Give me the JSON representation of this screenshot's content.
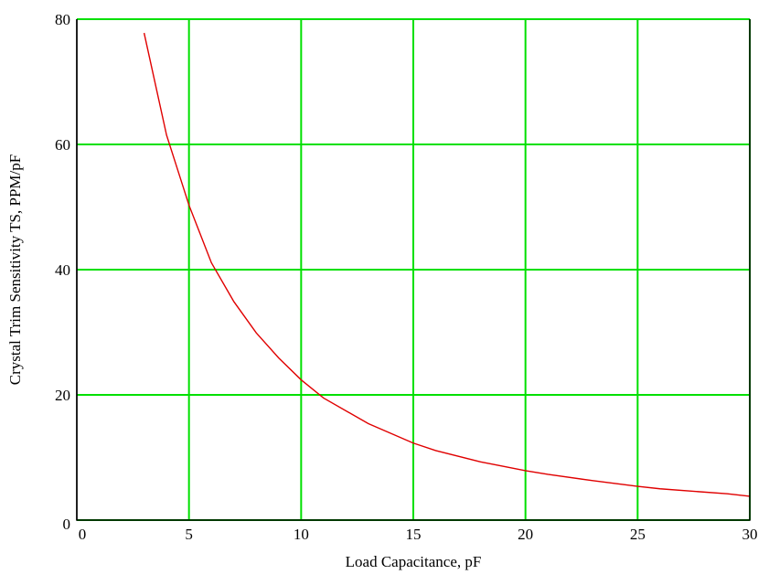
{
  "chart_data": {
    "type": "line",
    "title": "",
    "xlabel": "Load Capacitance, pF",
    "ylabel": "Crystal Trim Sensitivity TS, PPM/pF",
    "xlim": [
      0,
      30
    ],
    "ylim": [
      0,
      80
    ],
    "xticks": [
      0,
      5,
      10,
      15,
      20,
      25,
      30
    ],
    "yticks": [
      0,
      20,
      40,
      60,
      80
    ],
    "grid": true,
    "colors": {
      "grid": "#00e000",
      "line": "#e00000",
      "frame": "#000000"
    },
    "series": [
      {
        "x": [
          3,
          4,
          5,
          6,
          7,
          8,
          9,
          10,
          11,
          13,
          15,
          16,
          18,
          20,
          21,
          23,
          25,
          26,
          29,
          30
        ],
        "y": [
          77.8,
          61.5,
          50.3,
          41.1,
          34.9,
          29.9,
          25.9,
          22.4,
          19.5,
          15.4,
          12.3,
          11.1,
          9.3,
          7.9,
          7.3,
          6.3,
          5.4,
          5.0,
          4.2,
          3.8
        ]
      }
    ]
  }
}
